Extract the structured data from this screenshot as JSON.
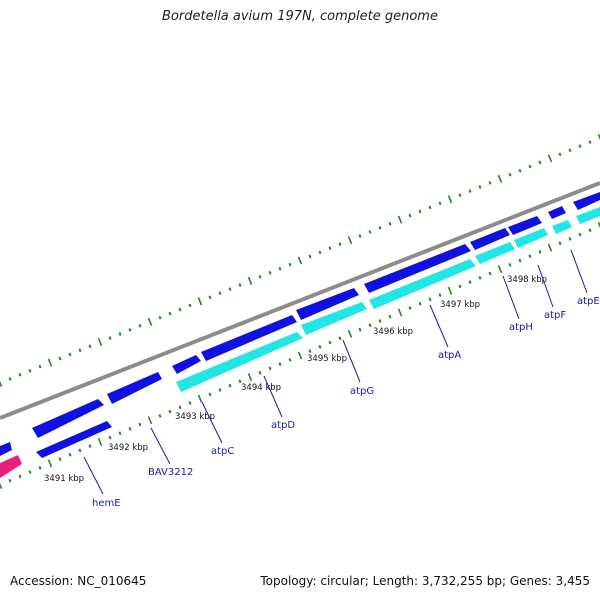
{
  "title": "Bordetella avium 197N, complete genome",
  "footer": {
    "accession": "Accession: NC_010645",
    "stats": "Topology: circular; Length: 3,732,255 bp; Genes: 3,455"
  },
  "colors": {
    "backbone": "#8c8c8c",
    "forward_gene": "#1010e0",
    "reverse_gene": "#22e5e5",
    "highlight_gene": "#e8207a",
    "ticks": "#1f8a1f",
    "gene_label": "#1a1aa8"
  },
  "kbp_labels": [
    "3491 kbp",
    "3492 kbp",
    "3493 kbp",
    "3494 kbp",
    "3495 kbp",
    "3496 kbp",
    "3497 kbp",
    "3498 kbp"
  ],
  "gene_labels": [
    "hemE",
    "BAV3212",
    "atpC",
    "atpD",
    "atpG",
    "atpA",
    "atpH",
    "atpF",
    "atpE"
  ]
}
